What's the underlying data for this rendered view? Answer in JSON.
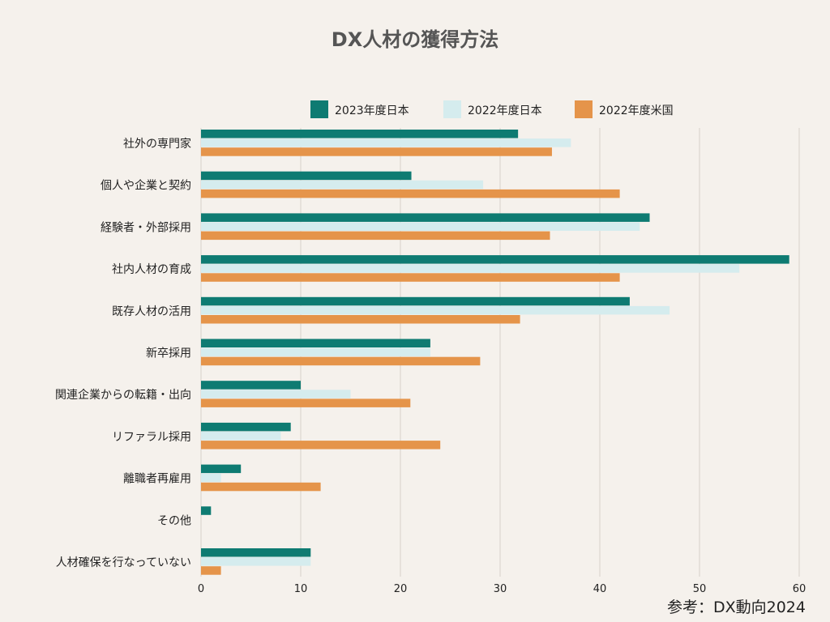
{
  "chart_data": {
    "type": "bar",
    "orientation": "horizontal",
    "title": "DX人材の獲得方法",
    "source": "参考：DX動向2024",
    "legend_position": "top-right",
    "grid": true,
    "xlim": [
      0,
      60
    ],
    "xticks": [
      "0",
      "10",
      "20",
      "30",
      "40",
      "50",
      "60"
    ],
    "categories": [
      "社外の専門家",
      "個人や企業と契約",
      "経験者・外部採用",
      "社内人材の育成",
      "既存人材の活用",
      "新卒採用",
      "関連企業からの転籍・出向",
      "リファラル採用",
      "離職者再雇用",
      "その他",
      "人材確保を行なっていない"
    ],
    "series": [
      {
        "name": "2023年度日本",
        "color": "#0e7b72",
        "values": [
          31.8,
          21.1,
          45,
          59,
          43,
          23,
          10,
          9,
          4,
          1,
          11
        ]
      },
      {
        "name": "2022年度日本",
        "color": "#d5ecee",
        "values": [
          37.1,
          28.3,
          44,
          54,
          47,
          23,
          15,
          8,
          2,
          0,
          11
        ]
      },
      {
        "name": "2022年度米国",
        "color": "#e5944a",
        "values": [
          35.2,
          42,
          35,
          42,
          32,
          28,
          21,
          24,
          12,
          0,
          2
        ]
      }
    ]
  }
}
